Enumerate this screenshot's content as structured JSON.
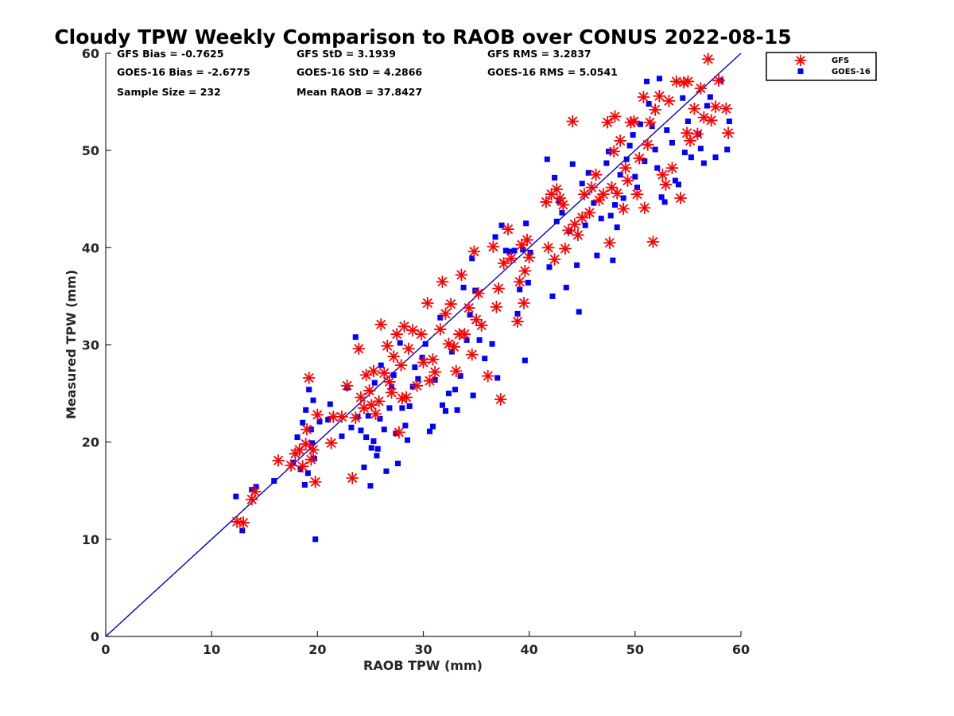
{
  "chart_data": {
    "type": "scatter",
    "title": "Cloudy TPW Weekly Comparison to RAOB over CONUS 2022-08-15",
    "xlabel": "RAOB TPW (mm)",
    "ylabel": "Measured TPW (mm)",
    "xlim": [
      0,
      60
    ],
    "ylim": [
      0,
      60
    ],
    "xticks": [
      0,
      10,
      20,
      30,
      40,
      50,
      60
    ],
    "yticks": [
      0,
      10,
      20,
      30,
      40,
      50,
      60
    ],
    "xtick_labels": [
      "0",
      "10",
      "20",
      "30",
      "40",
      "50",
      "60"
    ],
    "ytick_labels": [
      "0",
      "10",
      "20",
      "30",
      "40",
      "50",
      "60"
    ],
    "grid": false,
    "legend_position": "outside top-right",
    "one_to_one_line": {
      "from": [
        0,
        0
      ],
      "to": [
        60,
        60
      ],
      "color": "#0000cc"
    },
    "stats": [
      {
        "text": "GFS Bias = -0.7625"
      },
      {
        "text": "GFS StD = 3.1939"
      },
      {
        "text": "GFS RMS = 3.2837"
      },
      {
        "text": "GOES-16 Bias = -2.6775"
      },
      {
        "text": "GOES-16 StD = 4.2866"
      },
      {
        "text": "GOES-16 RMS = 5.0541"
      },
      {
        "text": "Sample Size = 232"
      },
      {
        "text": "Mean RAOB = 37.8427"
      }
    ],
    "series": [
      {
        "name": "GFS",
        "marker": "asterisk",
        "color": "#ff0000",
        "points": [
          [
            12.4,
            11.8
          ],
          [
            13,
            11.7
          ],
          [
            13.8,
            14.1
          ],
          [
            14.1,
            14.9
          ],
          [
            16.3,
            18.1
          ],
          [
            17.5,
            17.6
          ],
          [
            17.9,
            18.8
          ],
          [
            18.3,
            19.2
          ],
          [
            18.6,
            17.5
          ],
          [
            18.9,
            19.8
          ],
          [
            19,
            21.3
          ],
          [
            19.2,
            26.6
          ],
          [
            19.4,
            18.2
          ],
          [
            19.6,
            19.2
          ],
          [
            19.8,
            15.9
          ],
          [
            20,
            22.8
          ],
          [
            21.3,
            19.9
          ],
          [
            21.5,
            22.6
          ],
          [
            22.3,
            22.6
          ],
          [
            22.8,
            25.8
          ],
          [
            23.3,
            16.3
          ],
          [
            23.6,
            22.5
          ],
          [
            23.9,
            29.6
          ],
          [
            24.1,
            24.6
          ],
          [
            24.4,
            23.5
          ],
          [
            24.6,
            26.9
          ],
          [
            24.9,
            25.3
          ],
          [
            25.1,
            23.8
          ],
          [
            25.3,
            27.3
          ],
          [
            25.5,
            22.9
          ],
          [
            25.8,
            24.2
          ],
          [
            26,
            32.1
          ],
          [
            26.3,
            27.1
          ],
          [
            26.6,
            29.9
          ],
          [
            26.8,
            26.2
          ],
          [
            27,
            25.1
          ],
          [
            27.2,
            28.8
          ],
          [
            27.5,
            31.1
          ],
          [
            27.7,
            21
          ],
          [
            27.9,
            27.9
          ],
          [
            28,
            24.5
          ],
          [
            28.2,
            31.9
          ],
          [
            28.4,
            24.6
          ],
          [
            28.6,
            29.6
          ],
          [
            29,
            31.5
          ],
          [
            29.4,
            25.8
          ],
          [
            29.8,
            31.1
          ],
          [
            30,
            28.2
          ],
          [
            30.4,
            34.3
          ],
          [
            30.6,
            26.3
          ],
          [
            30.9,
            28.5
          ],
          [
            31.1,
            27.2
          ],
          [
            31.6,
            31.6
          ],
          [
            31.8,
            36.5
          ],
          [
            32.1,
            33.2
          ],
          [
            32.4,
            30.1
          ],
          [
            32.6,
            34.2
          ],
          [
            32.9,
            29.8
          ],
          [
            33.1,
            27.3
          ],
          [
            33.4,
            31.1
          ],
          [
            33.6,
            37.2
          ],
          [
            33.9,
            31.1
          ],
          [
            34.3,
            33.8
          ],
          [
            34.6,
            29
          ],
          [
            34.8,
            39.6
          ],
          [
            35,
            32.6
          ],
          [
            35.2,
            35.3
          ],
          [
            35.5,
            32
          ],
          [
            36.1,
            26.8
          ],
          [
            36.6,
            40.1
          ],
          [
            36.9,
            33.9
          ],
          [
            37.1,
            35.8
          ],
          [
            37.3,
            24.4
          ],
          [
            37.6,
            38.4
          ],
          [
            38,
            41.9
          ],
          [
            38.3,
            38.9
          ],
          [
            38.9,
            32.4
          ],
          [
            39.1,
            36.5
          ],
          [
            39.3,
            40.3
          ],
          [
            39.5,
            34.3
          ],
          [
            39.6,
            37.6
          ],
          [
            39.8,
            40.8
          ],
          [
            40,
            39
          ],
          [
            41.6,
            44.7
          ],
          [
            41.8,
            40
          ],
          [
            42.1,
            45.5
          ],
          [
            42.4,
            38.8
          ],
          [
            42.6,
            46
          ],
          [
            42.9,
            45.1
          ],
          [
            43.2,
            44.4
          ],
          [
            43.4,
            39.9
          ],
          [
            43.7,
            41.8
          ],
          [
            44.1,
            53
          ],
          [
            44.3,
            42.4
          ],
          [
            44.6,
            41.3
          ],
          [
            45,
            43.1
          ],
          [
            45.2,
            45.5
          ],
          [
            45.7,
            43.6
          ],
          [
            45.9,
            46.2
          ],
          [
            46.3,
            47.5
          ],
          [
            46.6,
            44.9
          ],
          [
            47,
            45.5
          ],
          [
            47.4,
            52.9
          ],
          [
            47.6,
            40.5
          ],
          [
            47.8,
            46.2
          ],
          [
            48,
            49.9
          ],
          [
            48.1,
            53.5
          ],
          [
            48.3,
            45.6
          ],
          [
            48.6,
            51
          ],
          [
            48.9,
            44
          ],
          [
            49.1,
            48.2
          ],
          [
            49.3,
            46.9
          ],
          [
            49.6,
            52.9
          ],
          [
            49.9,
            53
          ],
          [
            50.2,
            45.5
          ],
          [
            50.4,
            49.2
          ],
          [
            50.8,
            55.5
          ],
          [
            50.9,
            44.1
          ],
          [
            51.2,
            50.6
          ],
          [
            51.4,
            52.9
          ],
          [
            51.7,
            40.6
          ],
          [
            51.9,
            54.2
          ],
          [
            52.3,
            55.6
          ],
          [
            52.6,
            47.5
          ],
          [
            52.9,
            46.5
          ],
          [
            53.2,
            55.1
          ],
          [
            53.5,
            48.2
          ],
          [
            53.9,
            57.1
          ],
          [
            54.3,
            45.1
          ],
          [
            54.6,
            57
          ],
          [
            54.9,
            51.8
          ],
          [
            55,
            57.1
          ],
          [
            55.2,
            51
          ],
          [
            55.6,
            54.3
          ],
          [
            55.9,
            51.7
          ],
          [
            56.2,
            56.4
          ],
          [
            56.5,
            53.4
          ],
          [
            56.9,
            59.4
          ],
          [
            57.2,
            53.1
          ],
          [
            57.6,
            54.5
          ],
          [
            57.9,
            57.2
          ],
          [
            58.6,
            54.3
          ],
          [
            58.8,
            51.8
          ]
        ]
      },
      {
        "name": "GOES-16",
        "marker": "square",
        "color": "#0000ff",
        "points": [
          [
            12.3,
            14.4
          ],
          [
            12.9,
            10.9
          ],
          [
            13.8,
            15.1
          ],
          [
            14.2,
            15.4
          ],
          [
            15.9,
            16
          ],
          [
            17.7,
            17.9
          ],
          [
            18.1,
            20.5
          ],
          [
            18.4,
            17.2
          ],
          [
            18.6,
            22
          ],
          [
            18.8,
            15.6
          ],
          [
            18.9,
            23.3
          ],
          [
            19.1,
            16.8
          ],
          [
            19.2,
            25.4
          ],
          [
            19.4,
            21.3
          ],
          [
            19.5,
            19.9
          ],
          [
            19.6,
            24.3
          ],
          [
            19.7,
            18.3
          ],
          [
            19.8,
            10
          ],
          [
            20.2,
            22.1
          ],
          [
            21,
            22.3
          ],
          [
            21.2,
            23.9
          ],
          [
            22.3,
            20.6
          ],
          [
            22.8,
            25.6
          ],
          [
            23.2,
            21.5
          ],
          [
            23.6,
            30.8
          ],
          [
            23.8,
            22.6
          ],
          [
            24.1,
            21.2
          ],
          [
            24.4,
            17.4
          ],
          [
            24.6,
            20.5
          ],
          [
            24.8,
            22.7
          ],
          [
            25,
            15.5
          ],
          [
            25.1,
            19.4
          ],
          [
            25.3,
            20.1
          ],
          [
            25.4,
            26.1
          ],
          [
            25.6,
            18.6
          ],
          [
            25.7,
            19.3
          ],
          [
            25.9,
            22.4
          ],
          [
            26,
            27.9
          ],
          [
            26.3,
            21.3
          ],
          [
            26.5,
            17
          ],
          [
            26.8,
            23.5
          ],
          [
            27,
            25.7
          ],
          [
            27.2,
            26.9
          ],
          [
            27.4,
            20.9
          ],
          [
            27.6,
            17.8
          ],
          [
            27.8,
            30.2
          ],
          [
            28,
            23.5
          ],
          [
            28.3,
            21.7
          ],
          [
            28.5,
            20.2
          ],
          [
            28.7,
            23.7
          ],
          [
            29,
            25.7
          ],
          [
            29.2,
            27.7
          ],
          [
            29.5,
            26.5
          ],
          [
            29.9,
            28.7
          ],
          [
            30.2,
            30.1
          ],
          [
            30.6,
            21.1
          ],
          [
            30.9,
            21.6
          ],
          [
            31.1,
            26.4
          ],
          [
            31.6,
            32.8
          ],
          [
            31.8,
            23.8
          ],
          [
            32.1,
            23.2
          ],
          [
            32.4,
            25
          ],
          [
            32.7,
            29.3
          ],
          [
            33,
            25.4
          ],
          [
            33.2,
            23.3
          ],
          [
            33.5,
            26.8
          ],
          [
            33.8,
            35.9
          ],
          [
            34.1,
            30.5
          ],
          [
            34.4,
            33.1
          ],
          [
            34.6,
            38.9
          ],
          [
            34.7,
            24.8
          ],
          [
            34.9,
            35.6
          ],
          [
            35.3,
            30.5
          ],
          [
            35.8,
            28.6
          ],
          [
            36.5,
            30.1
          ],
          [
            36.8,
            41.1
          ],
          [
            37,
            26.6
          ],
          [
            37.4,
            42.3
          ],
          [
            37.8,
            39.7
          ],
          [
            38.2,
            39.6
          ],
          [
            38.6,
            39.7
          ],
          [
            38.9,
            33.2
          ],
          [
            39.1,
            35.7
          ],
          [
            39.4,
            39.8
          ],
          [
            39.6,
            28.4
          ],
          [
            39.7,
            42.5
          ],
          [
            39.9,
            36.4
          ],
          [
            40.1,
            39.5
          ],
          [
            41.7,
            49.1
          ],
          [
            41.9,
            38
          ],
          [
            42.2,
            35
          ],
          [
            42.4,
            47.2
          ],
          [
            42.6,
            42.7
          ],
          [
            42.8,
            44.8
          ],
          [
            43.1,
            43.6
          ],
          [
            43.5,
            35.9
          ],
          [
            43.8,
            41.7
          ],
          [
            44.1,
            48.6
          ],
          [
            44.5,
            38.2
          ],
          [
            44.7,
            33.4
          ],
          [
            45,
            46.6
          ],
          [
            45.3,
            42.3
          ],
          [
            45.6,
            47.7
          ],
          [
            46.1,
            44.6
          ],
          [
            46.4,
            39.2
          ],
          [
            46.8,
            43
          ],
          [
            47.3,
            48.7
          ],
          [
            47.5,
            49.9
          ],
          [
            47.7,
            43.3
          ],
          [
            47.9,
            38.7
          ],
          [
            48.1,
            44.4
          ],
          [
            48.3,
            42.1
          ],
          [
            48.6,
            47.5
          ],
          [
            48.9,
            45.1
          ],
          [
            49.2,
            49.1
          ],
          [
            49.5,
            50.5
          ],
          [
            49.8,
            51.6
          ],
          [
            50,
            47.3
          ],
          [
            50.2,
            46.2
          ],
          [
            50.5,
            52.7
          ],
          [
            50.9,
            48.9
          ],
          [
            51.1,
            57.1
          ],
          [
            51.3,
            54.8
          ],
          [
            51.6,
            52.5
          ],
          [
            51.9,
            50.1
          ],
          [
            52.1,
            48.2
          ],
          [
            52.3,
            57.4
          ],
          [
            52.5,
            45.2
          ],
          [
            52.8,
            44.7
          ],
          [
            53,
            52.1
          ],
          [
            53.5,
            50.8
          ],
          [
            53.8,
            46.9
          ],
          [
            54.1,
            46.5
          ],
          [
            54.5,
            55.4
          ],
          [
            54.7,
            49.8
          ],
          [
            55,
            53
          ],
          [
            55.3,
            49.3
          ],
          [
            56,
            51.7
          ],
          [
            56.2,
            50.2
          ],
          [
            56.5,
            48.7
          ],
          [
            56.8,
            54.6
          ],
          [
            57.1,
            55.5
          ],
          [
            57.6,
            49.3
          ],
          [
            58.1,
            57.2
          ],
          [
            58.7,
            50.1
          ],
          [
            58.9,
            53
          ]
        ]
      }
    ]
  }
}
